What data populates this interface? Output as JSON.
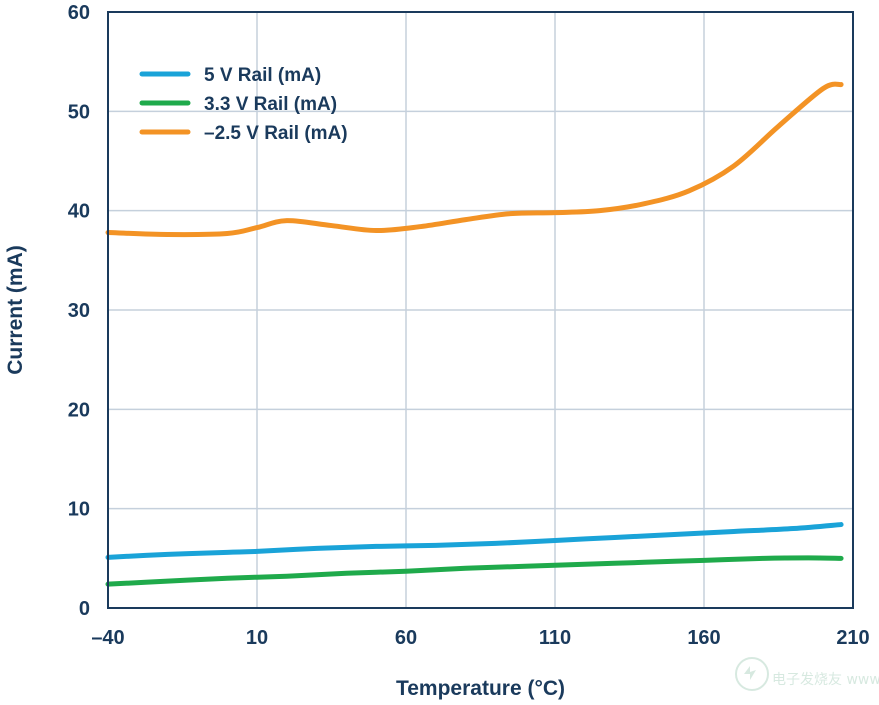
{
  "chart_data": {
    "type": "line",
    "xlabel": "Temperature (°C)",
    "ylabel": "Current (mA)",
    "xlim": [
      -40,
      210
    ],
    "ylim": [
      0,
      60
    ],
    "x_ticks": [
      "–40",
      "10",
      "60",
      "110",
      "160",
      "210"
    ],
    "y_ticks": [
      "0",
      "10",
      "20",
      "30",
      "40",
      "50",
      "60"
    ],
    "grid": true,
    "legend_position": "top-left",
    "series": [
      {
        "name": "5 V Rail (mA)",
        "color": "#1aa3d8",
        "x": [
          -40,
          -20,
          0,
          10,
          30,
          50,
          70,
          90,
          110,
          130,
          150,
          170,
          190,
          206
        ],
        "y": [
          5.1,
          5.4,
          5.6,
          5.7,
          6.0,
          6.2,
          6.3,
          6.5,
          6.8,
          7.1,
          7.4,
          7.7,
          8.0,
          8.4
        ]
      },
      {
        "name": "3.3 V Rail (mA)",
        "color": "#1faa4b",
        "x": [
          -40,
          -20,
          0,
          20,
          40,
          60,
          80,
          100,
          120,
          140,
          160,
          180,
          195,
          206
        ],
        "y": [
          2.4,
          2.7,
          3.0,
          3.2,
          3.5,
          3.7,
          4.0,
          4.2,
          4.4,
          4.6,
          4.8,
          5.0,
          5.05,
          5.0
        ]
      },
      {
        "name": "–2.5 V Rail (mA)",
        "color": "#f39325",
        "x": [
          -40,
          -20,
          0,
          10,
          20,
          35,
          50,
          65,
          80,
          95,
          110,
          125,
          140,
          155,
          170,
          185,
          200,
          206
        ],
        "y": [
          37.8,
          37.6,
          37.7,
          38.3,
          39.0,
          38.5,
          38.0,
          38.4,
          39.1,
          39.7,
          39.8,
          40.0,
          40.7,
          42.0,
          44.5,
          48.5,
          52.3,
          52.7
        ]
      }
    ]
  },
  "watermark": "电子发烧友 www.elecfans.com"
}
